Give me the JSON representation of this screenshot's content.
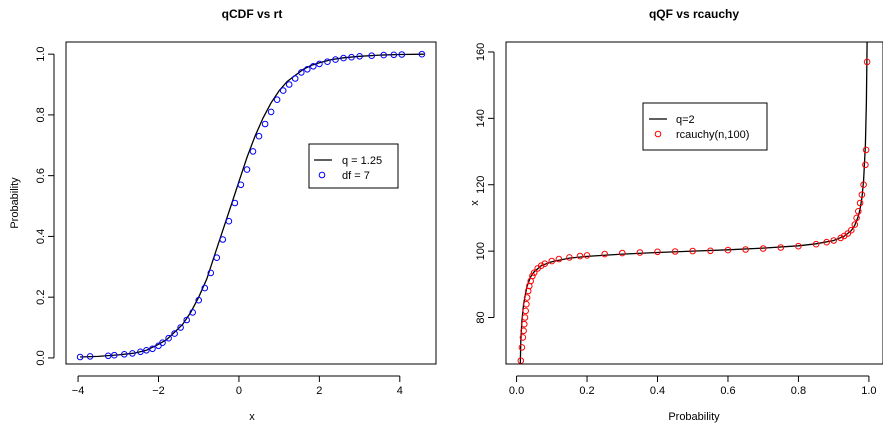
{
  "chart_data": [
    {
      "type": "line",
      "title": "qCDF vs rt",
      "xlabel": "x",
      "ylabel": "Probability",
      "xlim": [
        -4.3,
        4.9
      ],
      "ylim": [
        -0.02,
        1.04
      ],
      "xticks": [
        -4,
        -2,
        0,
        2,
        4
      ],
      "yticks": [
        0.0,
        0.2,
        0.4,
        0.6,
        0.8,
        1.0
      ],
      "xtick_labels": [
        "−4",
        "−2",
        "0",
        "2",
        "4"
      ],
      "ytick_labels": [
        "0.0",
        "0.2",
        "0.4",
        "0.6",
        "0.8",
        "1.0"
      ],
      "grid": false,
      "legend_position": "right",
      "series": [
        {
          "name": "q = 1.25",
          "style": "line",
          "color": "#000000",
          "x": [
            -3.95,
            -3.5,
            -3.0,
            -2.6,
            -2.3,
            -2.0,
            -1.8,
            -1.6,
            -1.4,
            -1.2,
            -1.0,
            -0.8,
            -0.6,
            -0.4,
            -0.2,
            0.0,
            0.2,
            0.4,
            0.6,
            0.8,
            1.0,
            1.2,
            1.4,
            1.6,
            1.8,
            2.0,
            2.3,
            2.6,
            3.0,
            3.5,
            4.0,
            4.6
          ],
          "y": [
            0.003,
            0.005,
            0.01,
            0.016,
            0.025,
            0.045,
            0.06,
            0.085,
            0.11,
            0.15,
            0.2,
            0.26,
            0.34,
            0.42,
            0.5,
            0.58,
            0.66,
            0.73,
            0.79,
            0.84,
            0.88,
            0.91,
            0.93,
            0.95,
            0.963,
            0.972,
            0.982,
            0.988,
            0.993,
            0.997,
            0.999,
            1.0
          ]
        },
        {
          "name": "df = 7",
          "style": "points",
          "color": "#0000ff",
          "x": [
            -3.95,
            -3.7,
            -3.25,
            -3.1,
            -2.85,
            -2.65,
            -2.45,
            -2.3,
            -2.15,
            -2.0,
            -1.9,
            -1.75,
            -1.6,
            -1.45,
            -1.3,
            -1.15,
            -1.0,
            -0.85,
            -0.7,
            -0.55,
            -0.4,
            -0.25,
            -0.1,
            0.05,
            0.2,
            0.35,
            0.5,
            0.65,
            0.8,
            0.95,
            1.1,
            1.25,
            1.4,
            1.55,
            1.7,
            1.85,
            2.0,
            2.2,
            2.4,
            2.6,
            2.8,
            3.0,
            3.3,
            3.6,
            3.85,
            4.05,
            4.55
          ],
          "y": [
            0.003,
            0.005,
            0.007,
            0.009,
            0.012,
            0.015,
            0.02,
            0.025,
            0.03,
            0.04,
            0.05,
            0.065,
            0.08,
            0.1,
            0.125,
            0.15,
            0.19,
            0.23,
            0.28,
            0.33,
            0.39,
            0.45,
            0.51,
            0.57,
            0.62,
            0.68,
            0.73,
            0.77,
            0.81,
            0.85,
            0.88,
            0.9,
            0.92,
            0.94,
            0.95,
            0.96,
            0.968,
            0.975,
            0.982,
            0.987,
            0.99,
            0.993,
            0.995,
            0.997,
            0.998,
            0.999,
            1.0
          ]
        }
      ]
    },
    {
      "type": "line",
      "title": "qQF vs rcauchy",
      "xlabel": "Probability",
      "ylabel": "x",
      "xlim": [
        -0.03,
        1.04
      ],
      "ylim": [
        66,
        163
      ],
      "xticks": [
        0.0,
        0.2,
        0.4,
        0.6,
        0.8,
        1.0
      ],
      "yticks": [
        80,
        100,
        120,
        140,
        160
      ],
      "xtick_labels": [
        "0.0",
        "0.2",
        "0.4",
        "0.6",
        "0.8",
        "1.0"
      ],
      "ytick_labels": [
        "80",
        "100",
        "120",
        "140",
        "160"
      ],
      "grid": false,
      "legend_position": "top-center",
      "series": [
        {
          "name": "q=2",
          "style": "line",
          "color": "#000000",
          "x": [
            0.0105,
            0.012,
            0.015,
            0.02,
            0.025,
            0.03,
            0.04,
            0.05,
            0.07,
            0.1,
            0.15,
            0.2,
            0.3,
            0.4,
            0.5,
            0.6,
            0.7,
            0.8,
            0.85,
            0.9,
            0.93,
            0.95,
            0.96,
            0.97,
            0.975,
            0.98,
            0.985,
            0.99,
            0.993,
            0.995
          ],
          "y": [
            66,
            73,
            79,
            84,
            87,
            89.5,
            92.3,
            93.8,
            95.6,
            96.8,
            97.9,
            98.4,
            99.1,
            99.6,
            100,
            100.4,
            100.9,
            101.6,
            102.2,
            103.2,
            104.5,
            106.2,
            107.8,
            110.5,
            112.7,
            116,
            121.3,
            132,
            145,
            163
          ]
        },
        {
          "name": "rcauchy(n,100)",
          "style": "points",
          "color": "#ff0000",
          "x": [
            0.012,
            0.015,
            0.018,
            0.02,
            0.022,
            0.024,
            0.026,
            0.028,
            0.03,
            0.033,
            0.036,
            0.04,
            0.045,
            0.05,
            0.06,
            0.07,
            0.08,
            0.1,
            0.12,
            0.15,
            0.18,
            0.2,
            0.25,
            0.3,
            0.35,
            0.4,
            0.45,
            0.5,
            0.55,
            0.6,
            0.65,
            0.7,
            0.75,
            0.8,
            0.85,
            0.88,
            0.9,
            0.92,
            0.93,
            0.94,
            0.95,
            0.96,
            0.965,
            0.97,
            0.975,
            0.98,
            0.985,
            0.99,
            0.992,
            0.995
          ],
          "y": [
            67,
            71,
            74,
            76,
            78,
            80,
            82,
            84,
            86,
            88,
            89.5,
            91,
            92.5,
            93.5,
            94.8,
            95.6,
            96.2,
            97,
            97.6,
            98.1,
            98.5,
            98.7,
            99.1,
            99.4,
            99.6,
            99.8,
            99.9,
            100,
            100.1,
            100.3,
            100.5,
            100.8,
            101.1,
            101.5,
            102.1,
            102.7,
            103.2,
            104,
            104.6,
            105.3,
            106.3,
            108,
            110,
            112,
            114.5,
            117,
            120,
            126,
            130.5,
            157
          ]
        }
      ]
    }
  ]
}
